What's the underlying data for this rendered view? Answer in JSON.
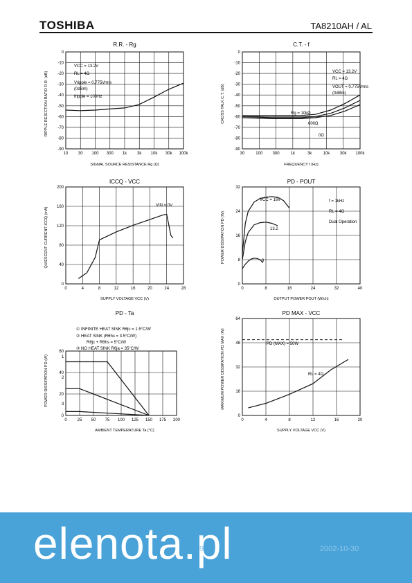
{
  "header": {
    "logo": "TOSHIBA",
    "part_number": "TA8210AH / AL"
  },
  "chart_data": [
    {
      "type": "line",
      "title": "R.R. - Rg",
      "xlabel": "SIGNAL SOURCE RESISTANCE  Rg  (Ω)",
      "ylabel": "RIPPLE REJECTION RATIO  R.R.  (dB)",
      "xscale": "log",
      "x_ticks": [
        "10",
        "30",
        "100",
        "300",
        "1k",
        "3k",
        "10k",
        "30k",
        "100k"
      ],
      "y_ticks": [
        "0",
        "-10",
        "-20",
        "-30",
        "-40",
        "-50",
        "-60",
        "-70",
        "-80",
        "-90"
      ],
      "xlim": [
        10,
        100000
      ],
      "ylim": [
        -90,
        0
      ],
      "annotations": [
        "VCC = 13.2V",
        "RL = 4Ω",
        "Vripple = 0.775Vrms",
        "(0dBm)",
        "fripple = 100Hz"
      ],
      "series": [
        {
          "x": [
            10,
            30,
            100,
            300,
            1000,
            3000,
            10000,
            30000,
            100000
          ],
          "y": [
            -54,
            -54.5,
            -54,
            -53,
            -52,
            -49,
            -42,
            -35,
            -29
          ]
        }
      ]
    },
    {
      "type": "line",
      "title": "C.T. - f",
      "xlabel": "FREQUENCY  f  (Hz)",
      "ylabel": "CROSS TALK  C.T.  (dB)",
      "xscale": "log",
      "x_ticks": [
        "30",
        "100",
        "300",
        "1k",
        "3k",
        "10k",
        "30k",
        "100k"
      ],
      "y_ticks": [
        "0",
        "-10",
        "-20",
        "-30",
        "-40",
        "-50",
        "-60",
        "-70",
        "-80",
        "-90"
      ],
      "xlim": [
        10,
        100000
      ],
      "ylim": [
        -90,
        0
      ],
      "annotations": [
        "VCC = 13.2V",
        "RL = 4Ω",
        "VOUT = 0.775Vrms",
        "(0dBm)",
        "Rg = 10kΩ",
        "600Ω",
        "0Ω"
      ],
      "series": [
        {
          "name": "Rg = 10kΩ",
          "x": [
            10,
            100,
            1000,
            3000,
            10000,
            30000,
            100000
          ],
          "y": [
            -59,
            -59,
            -59,
            -58,
            -54,
            -48,
            -40
          ]
        },
        {
          "name": "600Ω",
          "x": [
            10,
            100,
            1000,
            3000,
            10000,
            30000,
            100000
          ],
          "y": [
            -60,
            -61,
            -61,
            -60,
            -57,
            -52,
            -45
          ]
        },
        {
          "name": "0Ω",
          "x": [
            10,
            100,
            1000,
            3000,
            10000,
            30000,
            100000
          ],
          "y": [
            -61,
            -62,
            -62,
            -61,
            -59,
            -55,
            -49
          ]
        }
      ]
    },
    {
      "type": "line",
      "title": "ICCQ - VCC",
      "xlabel": "SUPPLY VOLTAGE  VCC  (V)",
      "ylabel": "QUIESCENT CURRENT  ICCQ  (mA)",
      "x_ticks": [
        "0",
        "4",
        "8",
        "12",
        "16",
        "20",
        "24",
        "28"
      ],
      "y_ticks": [
        "0",
        "40",
        "80",
        "120",
        "160",
        "200"
      ],
      "xlim": [
        0,
        28
      ],
      "ylim": [
        0,
        220
      ],
      "annotations": [
        "VIN = 0V"
      ],
      "series": [
        {
          "x": [
            3,
            5,
            7,
            8,
            12,
            16,
            20,
            23,
            24,
            25,
            25.5
          ],
          "y": [
            12,
            25,
            60,
            100,
            118,
            133,
            146,
            156,
            158,
            110,
            104
          ]
        }
      ]
    },
    {
      "type": "line",
      "title": "PD - POUT",
      "xlabel": "OUTPUT POWER  POUT  (W/ch)",
      "ylabel": "POWER DISSIPATION  PD  (W)",
      "x_ticks": [
        "0",
        "8",
        "16",
        "24",
        "32",
        "40"
      ],
      "y_ticks": [
        "0",
        "8",
        "16",
        "24",
        "32"
      ],
      "xlim": [
        0,
        40
      ],
      "ylim": [
        0,
        32
      ],
      "annotations": [
        "f = 1kHz",
        "RL = 4Ω",
        "Dual Operation",
        "VCC = 16V",
        "13.2",
        "9"
      ],
      "series": [
        {
          "name": "VCC = 16V",
          "x": [
            0,
            1,
            2,
            4,
            6,
            8,
            10,
            12,
            14,
            16
          ],
          "y": [
            10,
            20,
            24,
            27,
            28.2,
            28.6,
            28.8,
            28.6,
            27.5,
            25
          ]
        },
        {
          "name": "13.2",
          "x": [
            0,
            1,
            2,
            4,
            6,
            8,
            10,
            12
          ],
          "y": [
            8,
            14,
            17,
            19.5,
            20.2,
            20.4,
            20,
            19.2
          ]
        },
        {
          "name": "9",
          "x": [
            0,
            1,
            2,
            3,
            4,
            5,
            6,
            7
          ],
          "y": [
            5,
            6.5,
            7.5,
            8.2,
            8.5,
            8.4,
            8,
            7
          ]
        }
      ]
    },
    {
      "type": "line",
      "title": "PD - Ta",
      "xlabel": "AMBIENT TEMPERATURE  Ta  (°C)",
      "ylabel": "POWER DISSIPATION  PD  (W)",
      "x_ticks": [
        "0",
        "25",
        "50",
        "75",
        "100",
        "125",
        "150",
        "175",
        "200"
      ],
      "y_ticks": [
        "0",
        "20",
        "40",
        "60"
      ],
      "xlim": [
        0,
        200
      ],
      "ylim": [
        0,
        60
      ],
      "annotations": [
        "① INFINITE HEAT SINK Rθjc = 1.5°C/W",
        "② HEAT SINK (Rθhs = 3.5°C/W)",
        "Rθjc + Rθhs = 5°C/W",
        "③ NO HEAT SINK Rθja = 35°C/W",
        "1",
        "2",
        "3"
      ],
      "series": [
        {
          "name": "1",
          "x": [
            0,
            75,
            150
          ],
          "y": [
            50,
            50,
            0
          ]
        },
        {
          "name": "2",
          "x": [
            0,
            25,
            150
          ],
          "y": [
            25,
            25,
            0
          ]
        },
        {
          "name": "3",
          "x": [
            0,
            25,
            150
          ],
          "y": [
            3.6,
            3.6,
            0
          ]
        }
      ]
    },
    {
      "type": "line",
      "title": "PD MAX - VCC",
      "xlabel": "SUPPLY VOLTAGE  VCC  (V)",
      "ylabel": "MAXIMUM POWER DISSIPATION  PD MAX  (W)",
      "x_ticks": [
        "0",
        "4",
        "8",
        "12",
        "16",
        "20"
      ],
      "y_ticks": [
        "0",
        "16",
        "32",
        "48",
        "64"
      ],
      "xlim": [
        0,
        20
      ],
      "ylim": [
        0,
        64
      ],
      "annotations": [
        "PD (MAX) = 50W",
        "RL = 4Ω"
      ],
      "series": [
        {
          "x": [
            1,
            4,
            8,
            12,
            15,
            18
          ],
          "y": [
            5,
            8,
            14,
            21,
            30,
            37
          ]
        }
      ]
    }
  ],
  "banner": {
    "brand": "elenota.pl",
    "page": "9",
    "date": "2002-10-30"
  }
}
